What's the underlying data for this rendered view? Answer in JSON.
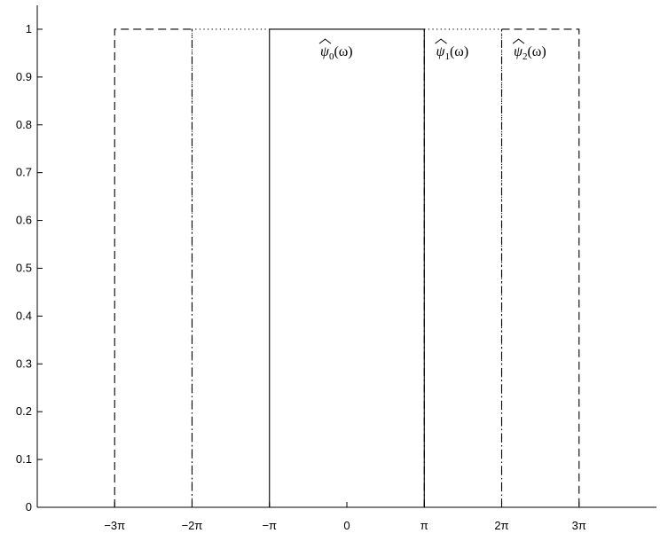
{
  "chart_data": {
    "type": "line",
    "title": "",
    "xlabel": "",
    "ylabel": "",
    "xlim": [
      -12.566,
      12.566
    ],
    "ylim": [
      0,
      1.05
    ],
    "grid": false,
    "xticks": [
      {
        "value": -9.4248,
        "label": "−3π"
      },
      {
        "value": -6.2832,
        "label": "−2π"
      },
      {
        "value": -3.1416,
        "label": "−π"
      },
      {
        "value": 0,
        "label": "0"
      },
      {
        "value": 3.1416,
        "label": "π"
      },
      {
        "value": 6.2832,
        "label": "2π"
      },
      {
        "value": 9.4248,
        "label": "3π"
      }
    ],
    "yticks": [
      {
        "value": 0,
        "label": "0"
      },
      {
        "value": 0.1,
        "label": "0.1"
      },
      {
        "value": 0.2,
        "label": "0.2"
      },
      {
        "value": 0.3,
        "label": "0.3"
      },
      {
        "value": 0.4,
        "label": "0.4"
      },
      {
        "value": 0.5,
        "label": "0.5"
      },
      {
        "value": 0.6,
        "label": "0.6"
      },
      {
        "value": 0.7,
        "label": "0.7"
      },
      {
        "value": 0.8,
        "label": "0.8"
      },
      {
        "value": 0.9,
        "label": "0.9"
      },
      {
        "value": 1,
        "label": "1"
      }
    ],
    "series": [
      {
        "style": "solid",
        "x": [
          -3.1416,
          -3.1416,
          3.1416,
          3.1416
        ],
        "y": [
          0,
          1,
          1,
          0
        ]
      },
      {
        "style": "dotted",
        "x": [
          -6.2832,
          -6.2832,
          -3.1416
        ],
        "y": [
          0,
          1,
          1
        ]
      },
      {
        "style": "dotted",
        "x": [
          3.1416,
          6.2832,
          6.2832
        ],
        "y": [
          1,
          1,
          0
        ]
      },
      {
        "style": "dashdot",
        "x": [
          -6.2832,
          -6.2832
        ],
        "y": [
          0,
          1
        ]
      },
      {
        "style": "dashdot",
        "x": [
          3.1416,
          3.1416
        ],
        "y": [
          0,
          1
        ]
      },
      {
        "style": "dashdot",
        "x": [
          6.2832,
          6.2832
        ],
        "y": [
          0,
          1
        ]
      },
      {
        "style": "dashed",
        "x": [
          -9.4248,
          -9.4248,
          -6.2832
        ],
        "y": [
          0,
          1,
          1
        ]
      },
      {
        "style": "dashed",
        "x": [
          6.2832,
          9.4248,
          9.4248
        ],
        "y": [
          1,
          1,
          0
        ]
      }
    ],
    "annotations": [
      {
        "x": 0,
        "y": 0.97,
        "base": "ψ",
        "sub": "0",
        "tail": "(ω)"
      },
      {
        "x": 4.7,
        "y": 0.97,
        "base": "ψ",
        "sub": "1",
        "tail": "(ω)"
      },
      {
        "x": 7.85,
        "y": 0.97,
        "base": "ψ",
        "sub": "2",
        "tail": "(ω)"
      }
    ]
  }
}
